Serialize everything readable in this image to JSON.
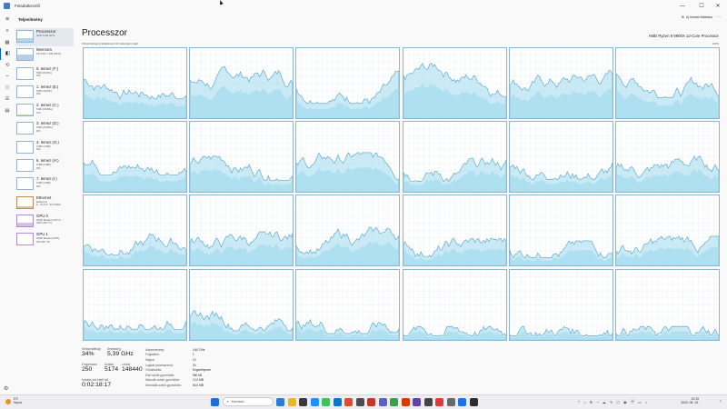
{
  "window": {
    "title": "Feladatkezelő",
    "controls": [
      "—",
      "☐",
      "✕"
    ]
  },
  "commandbar": {
    "menu_icon": "hamburger-icon",
    "title": "Teljesítmény",
    "new_task": "Új feladat futtatása",
    "more": "⋯"
  },
  "nav": {
    "icons": [
      "≡",
      "▦",
      "◧",
      "⟲",
      "⌁",
      "⚇",
      "☰",
      "▤"
    ],
    "active_index": 2,
    "settings_icon": "⚙"
  },
  "devices": [
    {
      "name": "Processzor",
      "sub": "34%  5,39 GHz",
      "color": "#6db6d8",
      "level": 0.34,
      "kind": "cpu"
    },
    {
      "name": "Memória",
      "sub": "15,1/31,7 GB (51%)",
      "color": "#7aa6d6",
      "level": 0.51,
      "kind": "mem"
    },
    {
      "name": "0. lemez (F:)",
      "sub": "SSD (SATA)",
      "sub2": "0%",
      "color": "#6fbf6f",
      "level": 0.0,
      "kind": "disk"
    },
    {
      "name": "1. lemez (E:)",
      "sub": "SSD (SATA)",
      "sub2": "0%",
      "color": "#6fbf6f",
      "level": 0.0,
      "kind": "disk"
    },
    {
      "name": "2. lemez (C:)",
      "sub": "SSD (NVMe)",
      "sub2": "1%",
      "color": "#6fbf6f",
      "level": 0.08,
      "kind": "disk"
    },
    {
      "name": "3. lemez (D:)",
      "sub": "SSD (NVMe)",
      "sub2": "0%",
      "color": "#6fbf6f",
      "level": 0.0,
      "kind": "disk"
    },
    {
      "name": "4. lemez (G:)",
      "sub": "USB (USB)",
      "sub2": "0%",
      "color": "#6fbf6f",
      "level": 0.0,
      "kind": "disk"
    },
    {
      "name": "6. lemez (H:)",
      "sub": "USB (USB)",
      "sub2": "0%",
      "color": "#6fbf6f",
      "level": 0.0,
      "kind": "disk"
    },
    {
      "name": "7. lemez (I:)",
      "sub": "USB (USB)",
      "sub2": "0%",
      "color": "#6fbf6f",
      "level": 0.0,
      "kind": "disk"
    },
    {
      "name": "Ethernet",
      "sub": "Ethernet",
      "sub2": "K: 72,0 F: 472 Mb/s",
      "color": "#c38b5a",
      "level": 0.1,
      "kind": "net"
    },
    {
      "name": "GPU 0",
      "sub": "AMD Radeon RX 6...",
      "sub2": "34% (60 °C)",
      "color": "#b28cd6",
      "level": 0.34,
      "kind": "gpu"
    },
    {
      "name": "GPU 1",
      "sub": "AMD Radeon(TM)...",
      "sub2": "0% (60 °C)",
      "color": "#b28cd6",
      "level": 0.0,
      "kind": "gpu"
    }
  ],
  "main": {
    "title": "Processzor",
    "cpu_name": "AMD Ryzen 9 9900X 12-Core Processor",
    "util_label": "Kihasználtság százalékosan 60 másodperc alatt",
    "pct_label": "100%"
  },
  "cores": {
    "count": 24,
    "fill_color": "#a6dcef",
    "line_color": "#4f9fc9",
    "mean_levels": [
      0.55,
      0.48,
      0.42,
      0.62,
      0.52,
      0.58,
      0.48,
      0.32,
      0.35,
      0.3,
      0.36,
      0.32,
      0.3,
      0.3,
      0.34,
      0.24,
      0.22,
      0.26,
      0.3,
      0.26,
      0.18,
      0.12,
      0.12,
      0.12
    ]
  },
  "stats": {
    "util_label": "Kihasználtság",
    "util_value": "34%",
    "speed_label": "Sebesség",
    "speed_value": "5,39 GHz",
    "proc_label": "Folyamatok",
    "proc_value": "250",
    "threads_label": "Szálak",
    "threads_value": "5174",
    "handles_label": "Leírók",
    "handles_value": "148440",
    "uptime_label": "Indulás óta eltelt idő",
    "uptime_value": "0:02:18:17"
  },
  "specs": [
    {
      "k": "Alapsebesség:",
      "v": "4,40 GHz"
    },
    {
      "k": "Foglalatok:",
      "v": "1"
    },
    {
      "k": "Magok:",
      "v": "12"
    },
    {
      "k": "Logikai processzorok:",
      "v": "24"
    },
    {
      "k": "Virtualizálás:",
      "v": "Engedélyezve"
    },
    {
      "k": "Első szintű gyorsítótár:",
      "v": "960 kB"
    },
    {
      "k": "Második szintű gyorsítótár:",
      "v": "12,0 MB"
    },
    {
      "k": "Harmadik szintű gyorsítótár:",
      "v": "64,0 MB"
    }
  ],
  "taskbar": {
    "weather_temp": "8°C",
    "weather_desc": "Napos",
    "search_placeholder": "Keresés",
    "apps": [
      "#2b7cd3",
      "#f0b429",
      "#3a3a3a",
      "#1e90ff",
      "#3cc35a",
      "#0078d4",
      "#e04a2f",
      "#4d4d4d",
      "#c0392b",
      "#5b5fc7",
      "#37a24a",
      "#d83b01",
      "#6441a5",
      "#444444",
      "#e03a3a",
      "#6a6a6a",
      "#1a73e8",
      "#2d2d2d"
    ],
    "tray": [
      "^",
      "⌂",
      "⚙",
      "◔",
      "☁",
      "✎",
      "⬡",
      "◉",
      "ⓦ",
      "▭",
      "♪"
    ],
    "time": "12:19",
    "date": "2024. 08. 13."
  }
}
